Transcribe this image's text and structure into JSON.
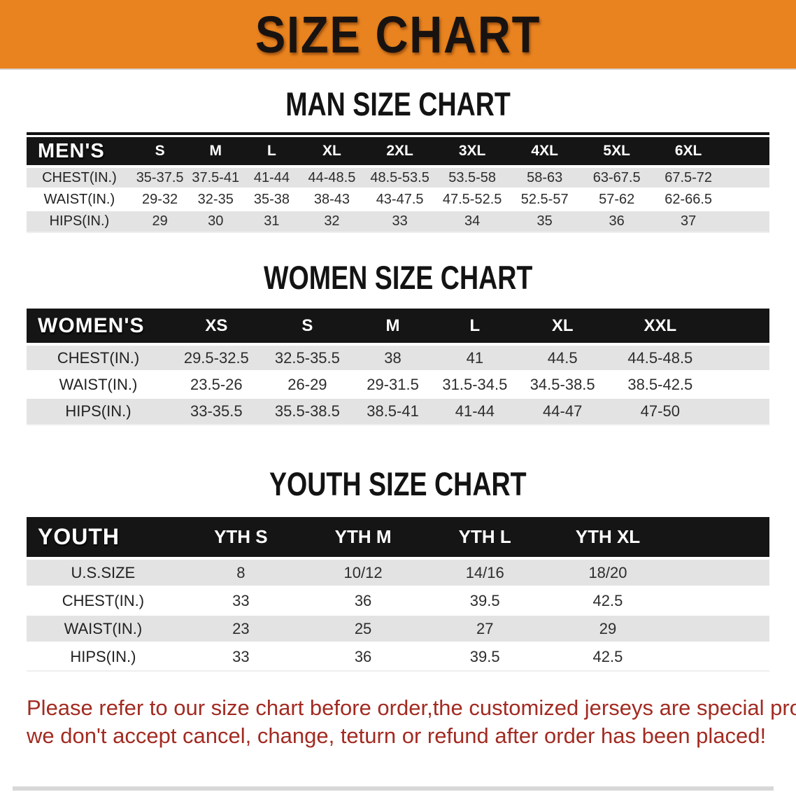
{
  "banner": {
    "title": "SIZE CHART",
    "bg_color": "#E8831F",
    "text_color": "#181310"
  },
  "sections": [
    {
      "title": "MAN SIZE CHART",
      "header_label": "MEN'S",
      "columns": [
        "S",
        "M",
        "L",
        "XL",
        "2XL",
        "3XL",
        "4XL",
        "5XL",
        "6XL"
      ],
      "rows": [
        {
          "label": "CHEST(IN.)",
          "values": [
            "35-37.5",
            "37.5-41",
            "41-44",
            "44-48.5",
            "48.5-53.5",
            "53.5-58",
            "58-63",
            "63-67.5",
            "67.5-72"
          ]
        },
        {
          "label": "WAIST(IN.)",
          "values": [
            "29-32",
            "32-35",
            "35-38",
            "38-43",
            "43-47.5",
            "47.5-52.5",
            "52.5-57",
            "57-62",
            "62-66.5"
          ]
        },
        {
          "label": "HIPS(IN.)",
          "values": [
            "29",
            "30",
            "31",
            "32",
            "33",
            "34",
            "35",
            "36",
            "37"
          ]
        }
      ]
    },
    {
      "title": "WOMEN SIZE CHART",
      "header_label": "WOMEN'S",
      "columns": [
        "XS",
        "S",
        "M",
        "L",
        "XL",
        "XXL"
      ],
      "rows": [
        {
          "label": "CHEST(IN.)",
          "values": [
            "29.5-32.5",
            "32.5-35.5",
            "38",
            "41",
            "44.5",
            "44.5-48.5"
          ]
        },
        {
          "label": "WAIST(IN.)",
          "values": [
            "23.5-26",
            "26-29",
            "29-31.5",
            "31.5-34.5",
            "34.5-38.5",
            "38.5-42.5"
          ]
        },
        {
          "label": "HIPS(IN.)",
          "values": [
            "33-35.5",
            "35.5-38.5",
            "38.5-41",
            "41-44",
            "44-47",
            "47-50"
          ]
        }
      ]
    },
    {
      "title": "YOUTH SIZE CHART",
      "header_label": "YOUTH",
      "columns": [
        "YTH S",
        "YTH M",
        "YTH L",
        "YTH XL"
      ],
      "rows": [
        {
          "label": "U.S.SIZE",
          "values": [
            "8",
            "10/12",
            "14/16",
            "18/20"
          ]
        },
        {
          "label": "CHEST(IN.)",
          "values": [
            "33",
            "36",
            "39.5",
            "42.5"
          ]
        },
        {
          "label": "WAIST(IN.)",
          "values": [
            "23",
            "25",
            "27",
            "29"
          ]
        },
        {
          "label": "HIPS(IN.)",
          "values": [
            "33",
            "36",
            "39.5",
            "42.5"
          ]
        }
      ]
    }
  ],
  "footer": {
    "line1": "Please refer to our size chart before order,the customized jerseys are special products,",
    "line2": "we don't accept cancel, change, teturn or refund after order has been placed!",
    "text_color": "#A22B22"
  },
  "colors": {
    "banner_orange": "#E8831F",
    "table_header_black": "#151515",
    "row_stripe_gray": "#e3e3e3",
    "footer_red": "#A22B22"
  }
}
